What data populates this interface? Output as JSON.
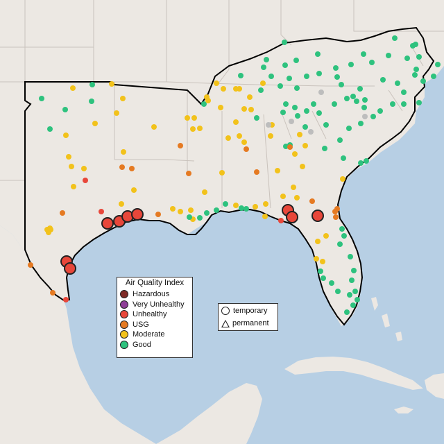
{
  "legend": {
    "title": "Air Quality Index",
    "categories": [
      {
        "label": "Hazardous",
        "color": "#7e2a26"
      },
      {
        "label": "Very Unhealthy",
        "color": "#8f3f97"
      },
      {
        "label": "Unhealthy",
        "color": "#e8473a"
      },
      {
        "label": "USG",
        "color": "#e57a22"
      },
      {
        "label": "Moderate",
        "color": "#f2c21b"
      },
      {
        "label": "Good",
        "color": "#2ec27e"
      }
    ]
  },
  "shape_legend": {
    "temporary": "temporary",
    "permanent": "permanent"
  },
  "colors": {
    "ocean": "#b7cfe4",
    "land": "#ece8e3",
    "region_outline": "#000000",
    "state_line": "#c9c2bc"
  }
}
